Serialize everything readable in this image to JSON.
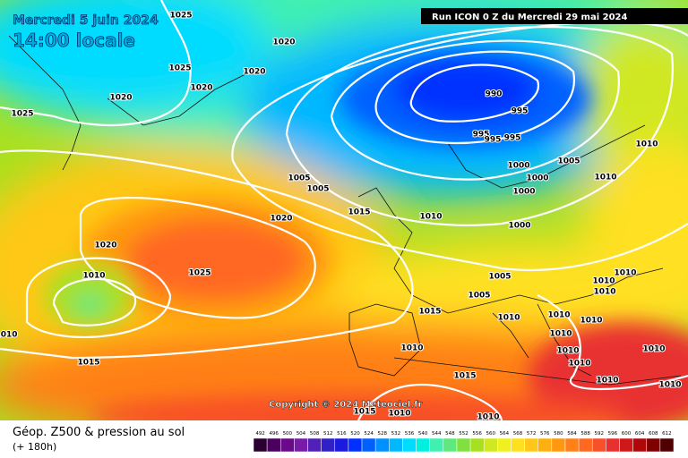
{
  "header": {
    "date": "Mercredi 5 juin 2024",
    "time": "14:00 locale",
    "run": "Run ICON 0 Z du Mercredi 29 mai 2024",
    "copyright": "Copyright © 2024 Meteociel.fr"
  },
  "legend": {
    "title": "Géop. Z500 & pression au sol",
    "subtitle": "(+ 180h)",
    "scale_labels": [
      492,
      496,
      500,
      504,
      508,
      512,
      516,
      520,
      524,
      528,
      532,
      536,
      540,
      544,
      548,
      552,
      556,
      560,
      564,
      568,
      572,
      576,
      580,
      584,
      588,
      592,
      596,
      600,
      604,
      608,
      612
    ],
    "scale_colors": [
      "#2a0030",
      "#4b0060",
      "#6a0a8a",
      "#7a1aa8",
      "#5020b8",
      "#3020c8",
      "#1a1ae0",
      "#0030ff",
      "#0060ff",
      "#0090ff",
      "#00b8ff",
      "#00dcff",
      "#00f0e0",
      "#40f0b0",
      "#60e880",
      "#80e040",
      "#a8e020",
      "#d0e820",
      "#f0f020",
      "#ffe020",
      "#ffc818",
      "#ffb010",
      "#ff9810",
      "#ff8018",
      "#ff6820",
      "#f85028",
      "#e83030",
      "#d01818",
      "#b00808",
      "#800000",
      "#500000"
    ]
  },
  "isobar_labels": [
    "1025",
    "1020",
    "1025",
    "1020",
    "1020",
    "1020",
    "1025",
    "990",
    "995",
    "995",
    "995",
    "995",
    "1005",
    "1000",
    "1000",
    "1010",
    "1000",
    "1005",
    "1005",
    "1010",
    "1015",
    "1010",
    "1020",
    "1000",
    "1020",
    "1025",
    "1010",
    "1005",
    "1010",
    "1010",
    "1010",
    "1005",
    "1015",
    "1010",
    "1010",
    "1010",
    "1010",
    "1010",
    "1010",
    "1010",
    "1010",
    "1015",
    "1010",
    "1015",
    "1010",
    "1015",
    "1010",
    "1010",
    "1010"
  ]
}
